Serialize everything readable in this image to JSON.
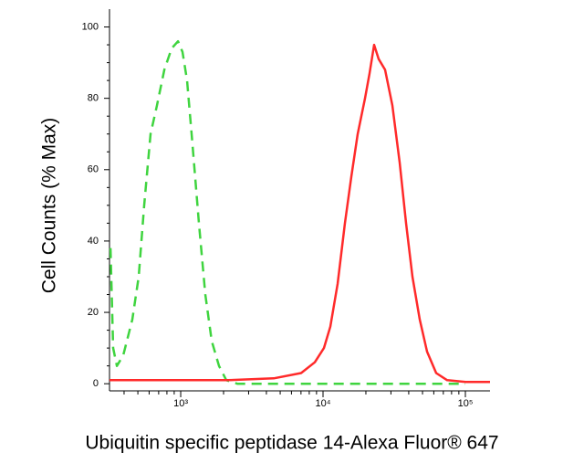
{
  "chart_data": {
    "type": "line",
    "xlabel": "Ubiquitin specific peptidase 14-Alexa Fluor® 647",
    "ylabel": "Cell Counts (% Max)",
    "xscale": "log",
    "xlim": [
      316,
      149000
    ],
    "ylim": [
      -2,
      105
    ],
    "xticks": [
      {
        "value": 1000,
        "label": "10³"
      },
      {
        "value": 10000,
        "label": "10⁴"
      },
      {
        "value": 100000,
        "label": "10⁵"
      }
    ],
    "xminorticks": [
      400,
      500,
      600,
      700,
      800,
      900,
      2000,
      3000,
      4000,
      5000,
      6000,
      7000,
      8000,
      9000,
      20000,
      30000,
      40000,
      50000,
      60000,
      70000,
      80000,
      90000
    ],
    "yticks": [
      0,
      20,
      40,
      60,
      80,
      100
    ],
    "yminorticks": [
      5,
      10,
      15,
      25,
      30,
      35,
      45,
      50,
      55,
      65,
      70,
      75,
      85,
      90,
      95
    ],
    "series": [
      {
        "color": "#3fd43f",
        "dashed": true,
        "x": [
          321,
          335,
          356,
          395,
          457,
          507,
          554,
          614,
          681,
          767,
          863,
          957,
          1030,
          1109,
          1194,
          1343,
          1490,
          1652,
          1859,
          2092,
          2497,
          100000
        ],
        "values": [
          38,
          10,
          5,
          8,
          18,
          30,
          50,
          70,
          78,
          88,
          94,
          96,
          93,
          85,
          70,
          45,
          25,
          12,
          5,
          1,
          0,
          0
        ]
      },
      {
        "color": "#ff2a2a",
        "dashed": false,
        "x": [
          316,
          2154,
          4505,
          7019,
          8756,
          10150,
          11250,
          12660,
          14250,
          15800,
          17520,
          19720,
          21230,
          22860,
          24600,
          27290,
          30710,
          34560,
          38310,
          42490,
          47800,
          53790,
          62350,
          74430,
          100000,
          149000
        ],
        "values": [
          1,
          1,
          1.5,
          3,
          6,
          10,
          16,
          28,
          45,
          58,
          70,
          80,
          87,
          95,
          91,
          88,
          78,
          62,
          45,
          30,
          18,
          9,
          3,
          1,
          0.5,
          0.5
        ]
      }
    ]
  }
}
